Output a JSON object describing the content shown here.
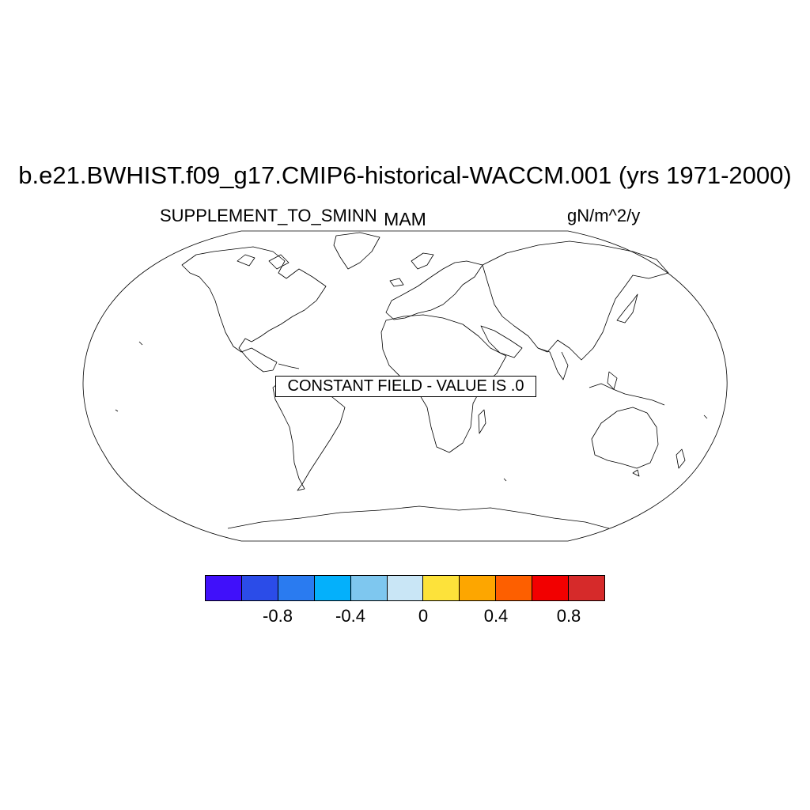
{
  "title": "b.e21.BWHIST.f09_g17.CMIP6-historical-WACCM.001 (yrs 1971-2000)",
  "left_label": "SUPPLEMENT_TO_SMINN",
  "center_label": "MAM",
  "right_label": "gN/m^2/y",
  "constant_field_label": "CONSTANT FIELD - VALUE IS .0",
  "map": {
    "projection": "Robinson-like (pseudo-cylindrical)",
    "features": "coastlines"
  },
  "colorbar": {
    "colors": [
      "#4010fa",
      "#2b4ce8",
      "#2a7bf0",
      "#04b0fb",
      "#7ec7ef",
      "#c9e6f6",
      "#fde23a",
      "#fda600",
      "#fd5f00",
      "#f20000",
      "#d62a2a"
    ],
    "tick_labels": [
      "-0.8",
      "-0.4",
      "0",
      "0.4",
      "0.8"
    ]
  }
}
